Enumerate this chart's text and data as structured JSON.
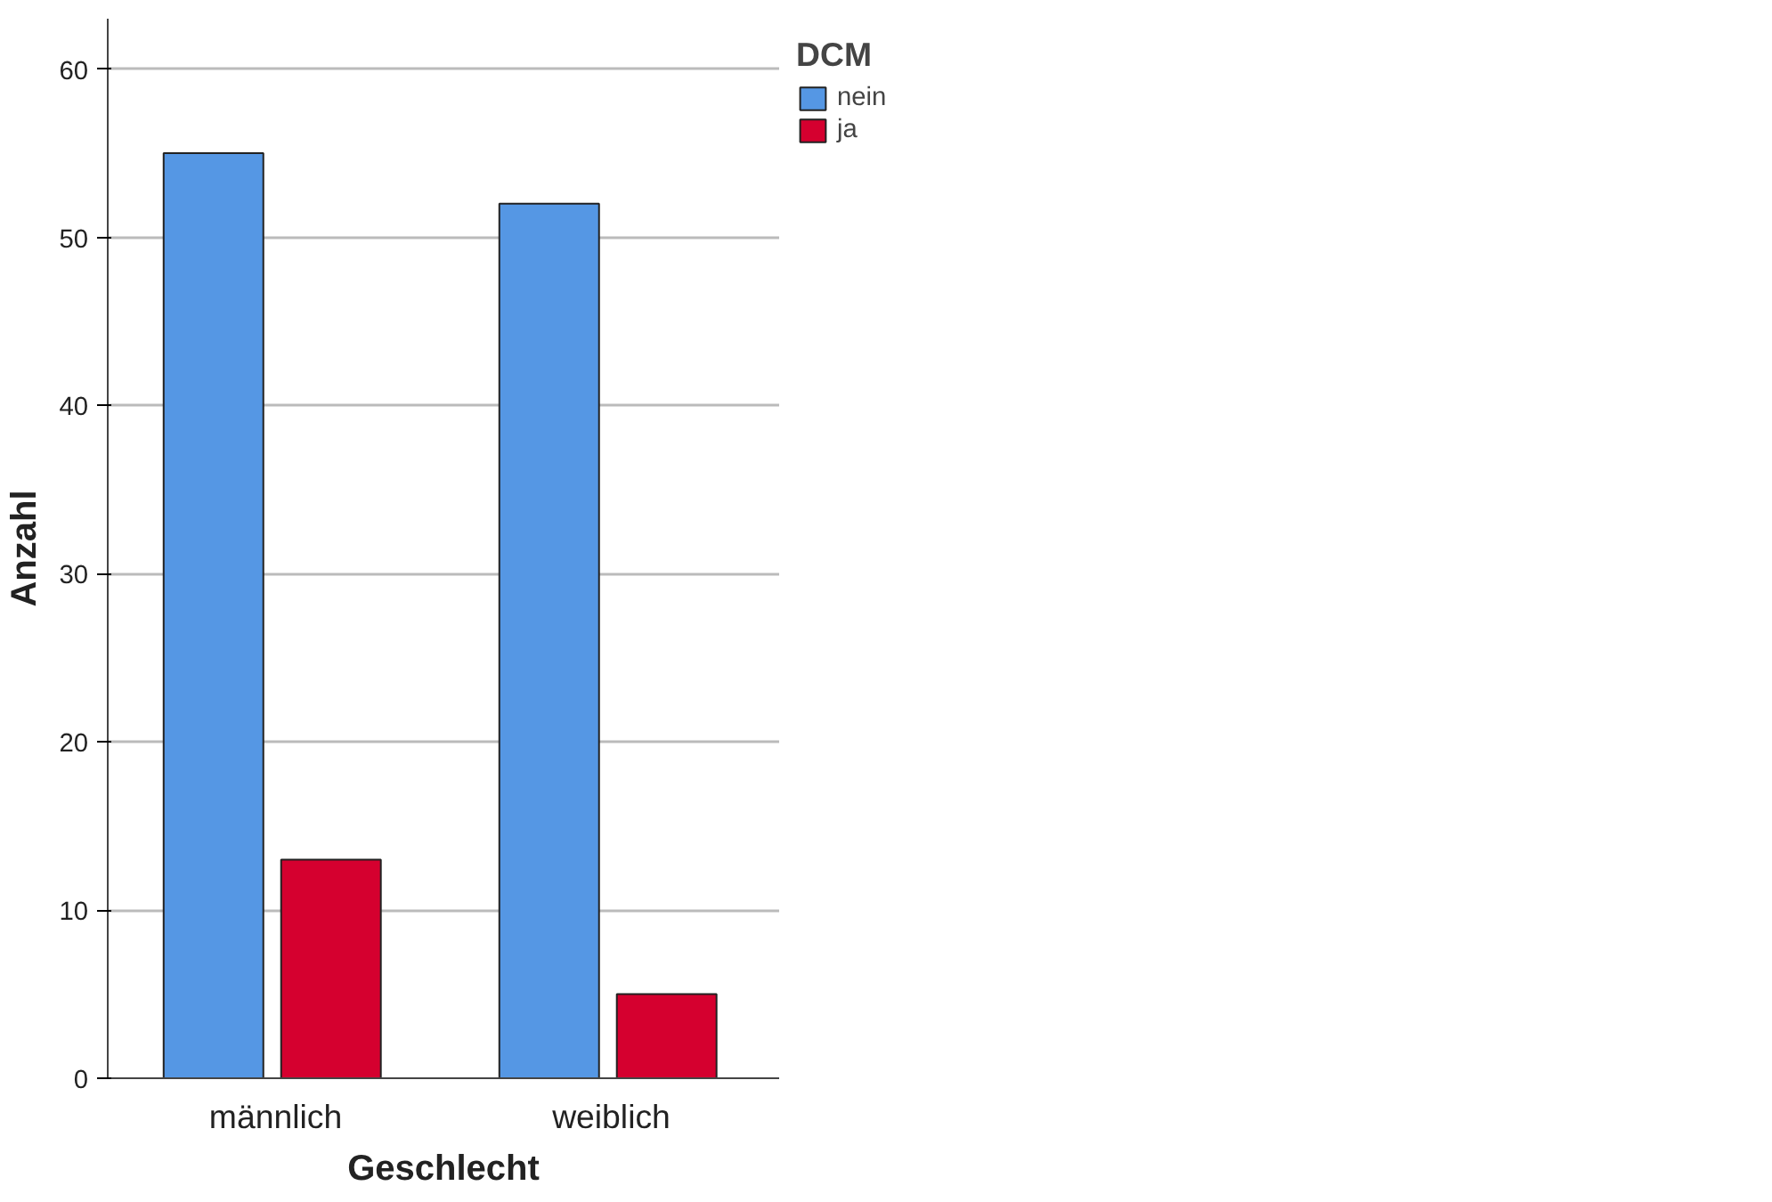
{
  "chart_data": {
    "type": "bar",
    "xlabel": "Geschlecht",
    "ylabel": "Anzahl",
    "legend_title": "DCM",
    "categories": [
      "männlich",
      "weiblich"
    ],
    "series": [
      {
        "name": "nein",
        "color": "#5597e4",
        "values": [
          55,
          52
        ]
      },
      {
        "name": "ja",
        "color": "#d5002f",
        "values": [
          13,
          5
        ]
      }
    ],
    "ylim": [
      0,
      63
    ],
    "yticks": [
      0,
      10,
      20,
      30,
      40,
      50,
      60
    ],
    "grid": "y",
    "legend": "top right"
  }
}
